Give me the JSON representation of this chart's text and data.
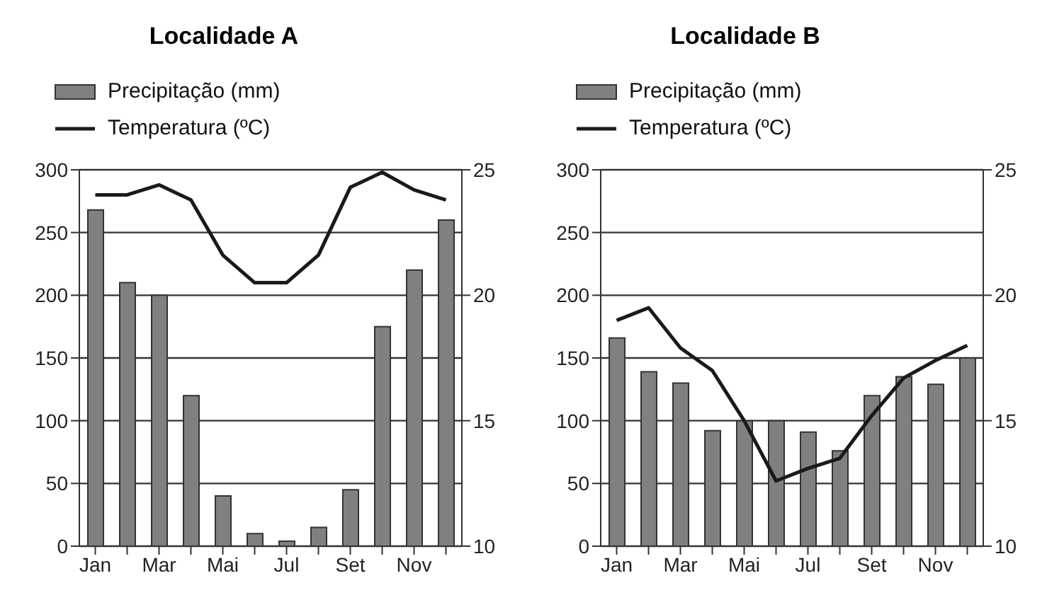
{
  "chart_data": [
    {
      "type": "bar",
      "title": "Localidade A",
      "categories": [
        "Jan",
        null,
        "Mar",
        null,
        "Mai",
        null,
        "Jul",
        null,
        "Set",
        null,
        "Nov",
        null
      ],
      "series": [
        {
          "name": "Precipitação (mm)",
          "color": "#808080",
          "values": [
            268,
            210,
            200,
            120,
            40,
            10,
            4,
            15,
            45,
            175,
            220,
            260
          ]
        },
        {
          "name": "Temperatura (ºC)",
          "type": "line",
          "axis": "y2",
          "color": "#1a1a1a",
          "values": [
            24.0,
            24.0,
            24.4,
            23.8,
            21.6,
            20.5,
            20.5,
            21.6,
            24.3,
            24.9,
            24.2,
            23.8
          ]
        }
      ],
      "ylim": [
        0,
        300
      ],
      "yticks": [
        0,
        50,
        100,
        150,
        200,
        250,
        300
      ],
      "y2lim": [
        10,
        25
      ],
      "y2ticks": [
        10,
        15,
        20,
        25
      ],
      "grid": "y",
      "legend": "top left",
      "marker": "none",
      "line_style": "solid"
    },
    {
      "type": "bar",
      "title": "Localidade B",
      "categories": [
        "Jan",
        null,
        "Mar",
        null,
        "Mai",
        null,
        "Jul",
        null,
        "Set",
        null,
        "Nov",
        null
      ],
      "series": [
        {
          "name": "Precipitação (mm)",
          "color": "#808080",
          "values": [
            166,
            139,
            130,
            92,
            100,
            100,
            91,
            76,
            120,
            135,
            129,
            150
          ]
        },
        {
          "name": "Temperatura (ºC)",
          "type": "line",
          "axis": "y2",
          "color": "#1a1a1a",
          "values": [
            19.0,
            19.5,
            17.9,
            17.0,
            15.0,
            12.6,
            13.1,
            13.5,
            15.2,
            16.7,
            17.4,
            18.0
          ]
        }
      ],
      "ylim": [
        0,
        300
      ],
      "yticks": [
        0,
        50,
        100,
        150,
        200,
        250,
        300
      ],
      "y2lim": [
        10,
        25
      ],
      "y2ticks": [
        10,
        15,
        20,
        25
      ],
      "grid": "y",
      "legend": "top left",
      "marker": "none",
      "line_style": "solid"
    }
  ]
}
